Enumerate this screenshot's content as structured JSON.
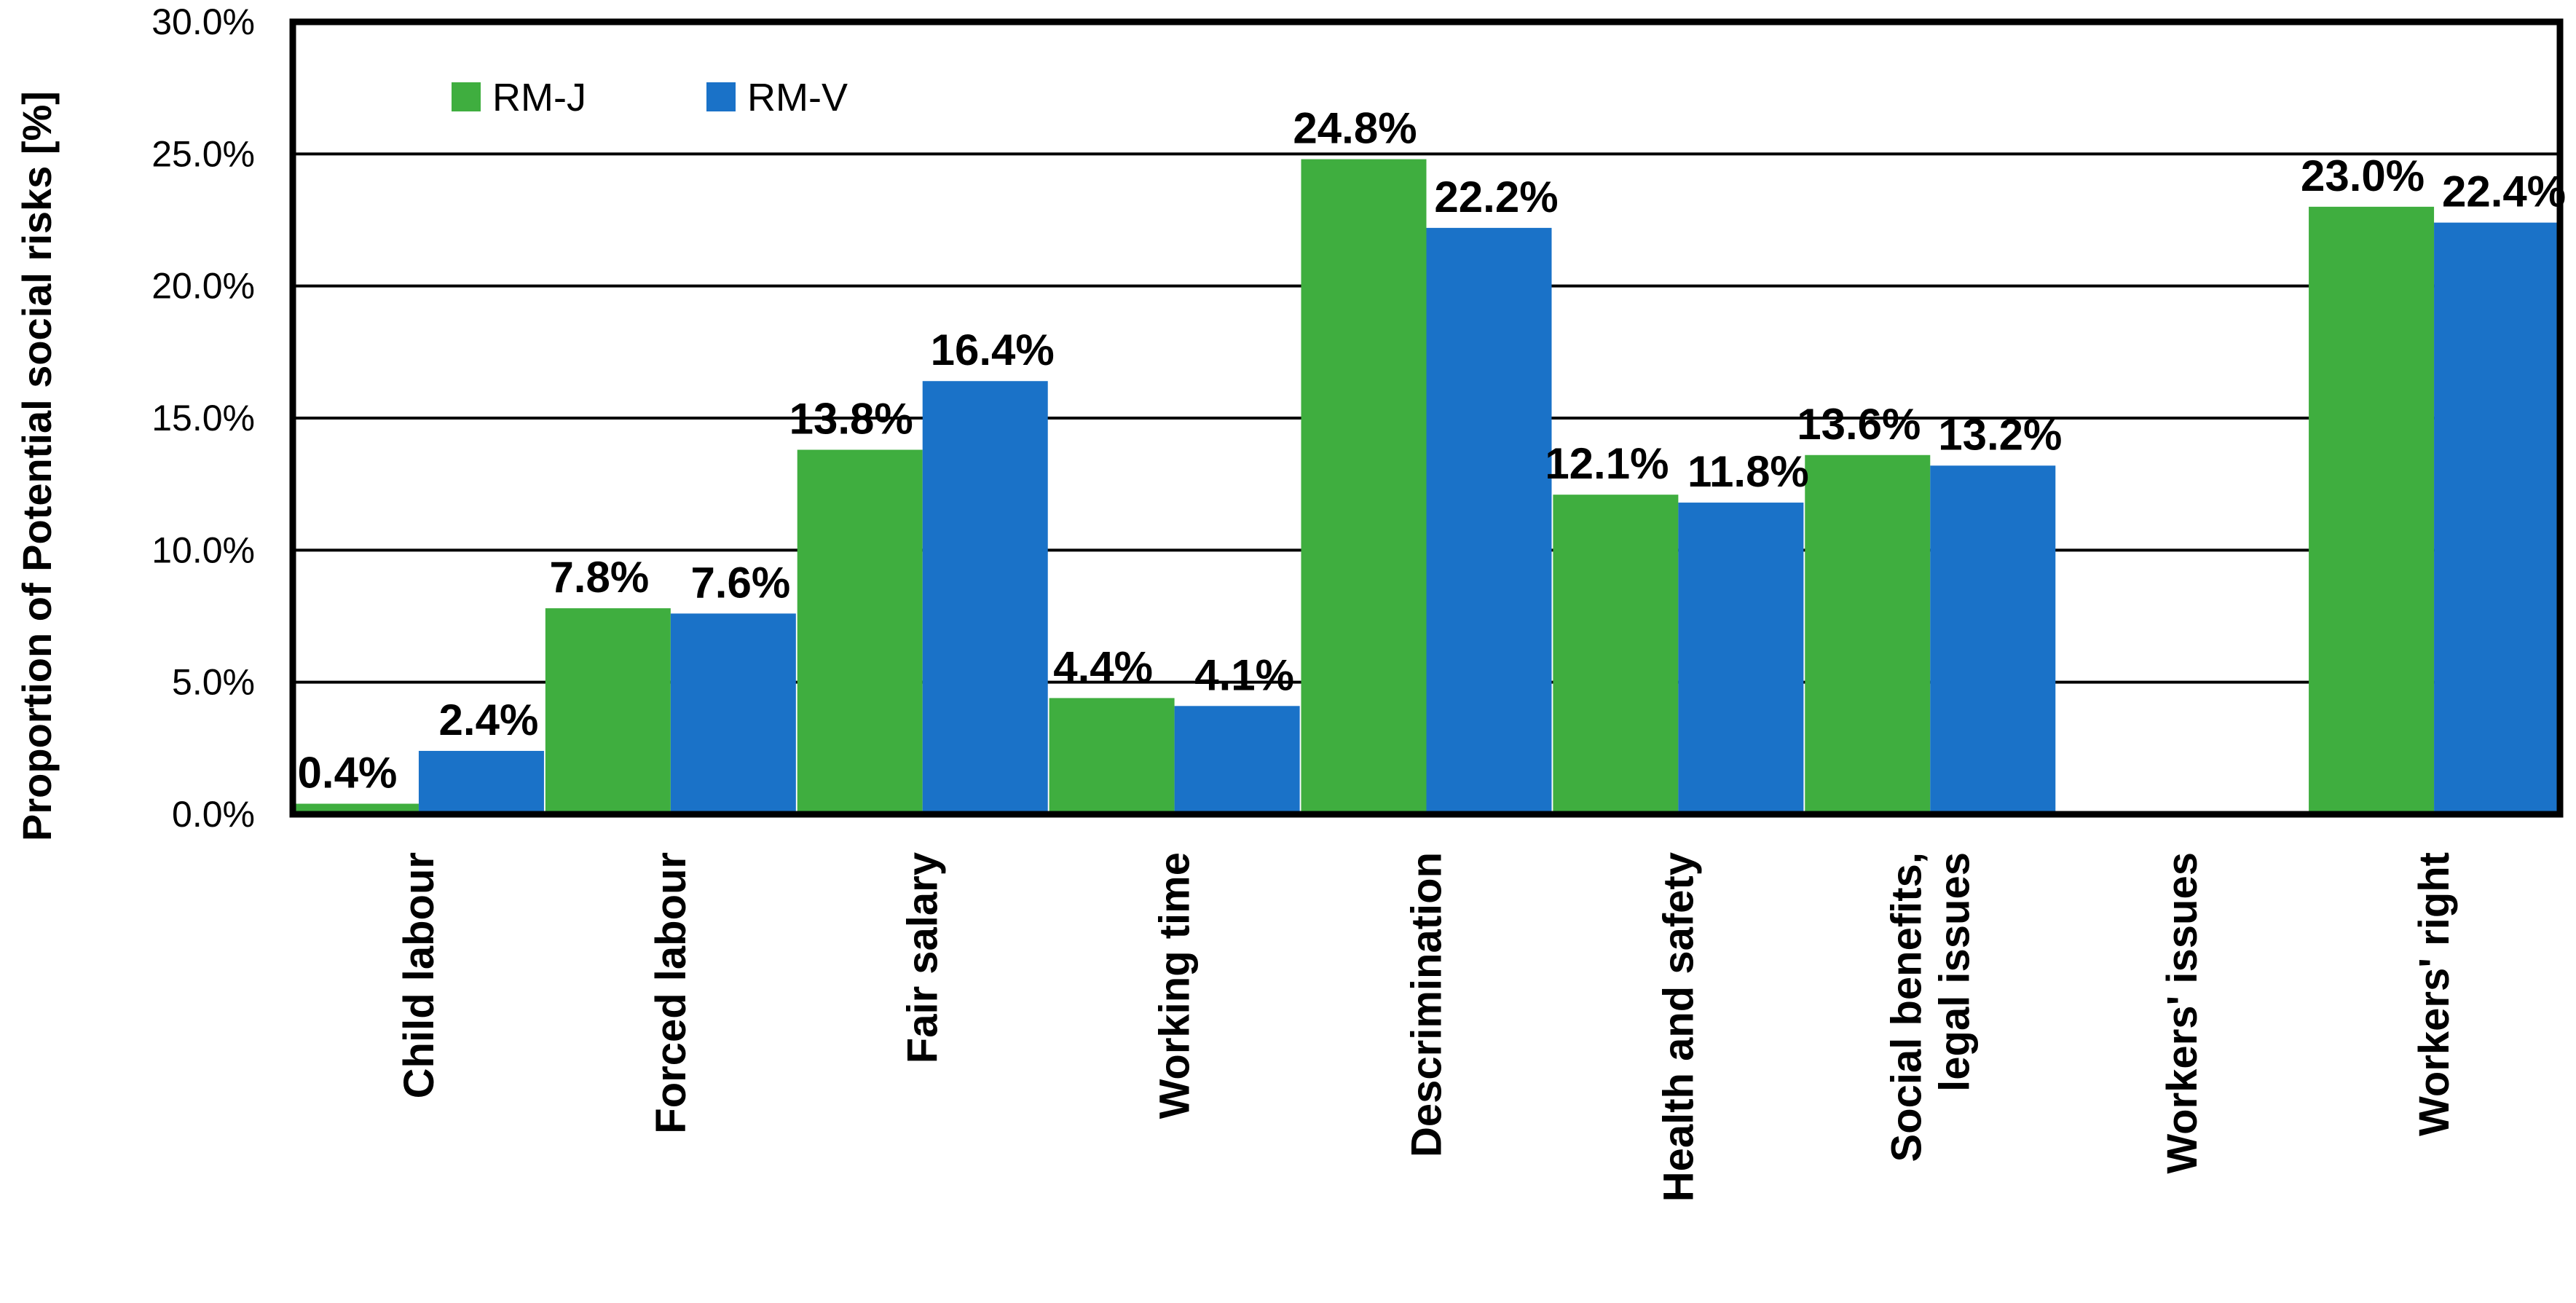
{
  "chart_data": {
    "type": "bar",
    "title": "",
    "xlabel": "",
    "ylabel": "Proportion of Potential social risks  [%]",
    "ylim": [
      0,
      30
    ],
    "yticks": [
      "0.0%",
      "5.0%",
      "10.0%",
      "15.0%",
      "20.0%",
      "25.0%",
      "30.0%"
    ],
    "ytick_values": [
      0,
      5,
      10,
      15,
      20,
      25,
      30
    ],
    "grid": true,
    "legend_position": "top-left",
    "categories": [
      [
        "Child labour"
      ],
      [
        "Forced labour"
      ],
      [
        "Fair salary"
      ],
      [
        "Working time"
      ],
      [
        "Descrimination"
      ],
      [
        "Health and safety"
      ],
      [
        "Social benefits,",
        "legal issues"
      ],
      [
        "Workers' issues"
      ],
      [
        "Workers' right"
      ]
    ],
    "series": [
      {
        "name": "RM-J",
        "color": "#3fae3f",
        "values": [
          0.4,
          7.8,
          13.8,
          4.4,
          24.8,
          12.1,
          13.6,
          null,
          23.0
        ],
        "labels": [
          "0.4%",
          "7.8%",
          "13.8%",
          "4.4%",
          "24.8%",
          "12.1%",
          "13.6%",
          "",
          "23.0%"
        ]
      },
      {
        "name": "RM-V",
        "color": "#1a72c8",
        "values": [
          2.4,
          7.6,
          16.4,
          4.1,
          22.2,
          11.8,
          13.2,
          null,
          22.4
        ],
        "labels": [
          "2.4%",
          "7.6%",
          "16.4%",
          "4.1%",
          "22.2%",
          "11.8%",
          "13.2%",
          "",
          "22.4%"
        ]
      }
    ]
  }
}
